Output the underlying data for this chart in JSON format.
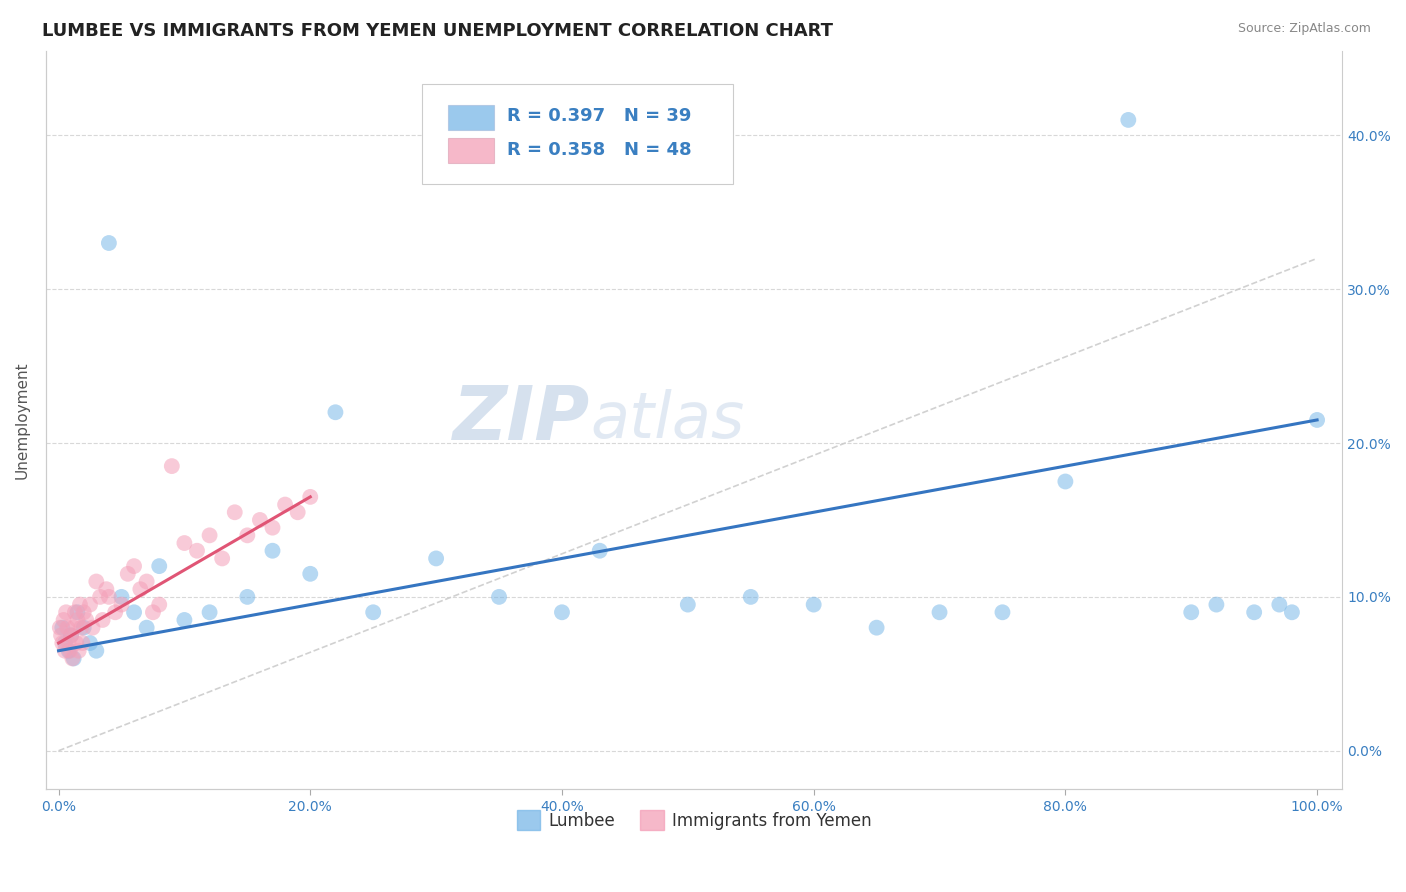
{
  "title": "LUMBEE VS IMMIGRANTS FROM YEMEN UNEMPLOYMENT CORRELATION CHART",
  "source": "Source: ZipAtlas.com",
  "ylabel_label": "Unemployment",
  "legend_r_n": [
    {
      "R": "0.397",
      "N": "39"
    },
    {
      "R": "0.358",
      "N": "48"
    }
  ],
  "lumbee_color": "#7ab8e8",
  "yemen_color": "#f4a0b8",
  "lumbee_line_color": "#3575c1",
  "yemen_line_color": "#e05575",
  "dashed_line_color": "#cccccc",
  "background_color": "#ffffff",
  "grid_color": "#d8d8d8",
  "watermark": "ZIPatlas",
  "title_fontsize": 13,
  "axis_fontsize": 11,
  "tick_fontsize": 10,
  "r_n_color": "#3a7fc1",
  "lumbee_line_start_x": 0.0,
  "lumbee_line_end_x": 1.0,
  "lumbee_line_start_y": 0.065,
  "lumbee_line_end_y": 0.215,
  "yemen_line_start_x": 0.0,
  "yemen_line_end_x": 0.2,
  "yemen_line_start_y": 0.07,
  "yemen_line_end_y": 0.165,
  "dashed_line_start_x": 0.0,
  "dashed_line_end_x": 1.0,
  "dashed_line_start_y": 0.0,
  "dashed_line_end_y": 0.32,
  "xlim_min": -0.01,
  "xlim_max": 1.02,
  "ylim_min": -0.025,
  "ylim_max": 0.455,
  "xticks": [
    0.0,
    0.2,
    0.4,
    0.6,
    0.8,
    1.0
  ],
  "xticklabels": [
    "0.0%",
    "20.0%",
    "40.0%",
    "60.0%",
    "80.0%",
    "100.0%"
  ],
  "yticks": [
    0.0,
    0.1,
    0.2,
    0.3,
    0.4
  ],
  "yticklabels": [
    "0.0%",
    "10.0%",
    "20.0%",
    "30.0%",
    "40.0%"
  ]
}
